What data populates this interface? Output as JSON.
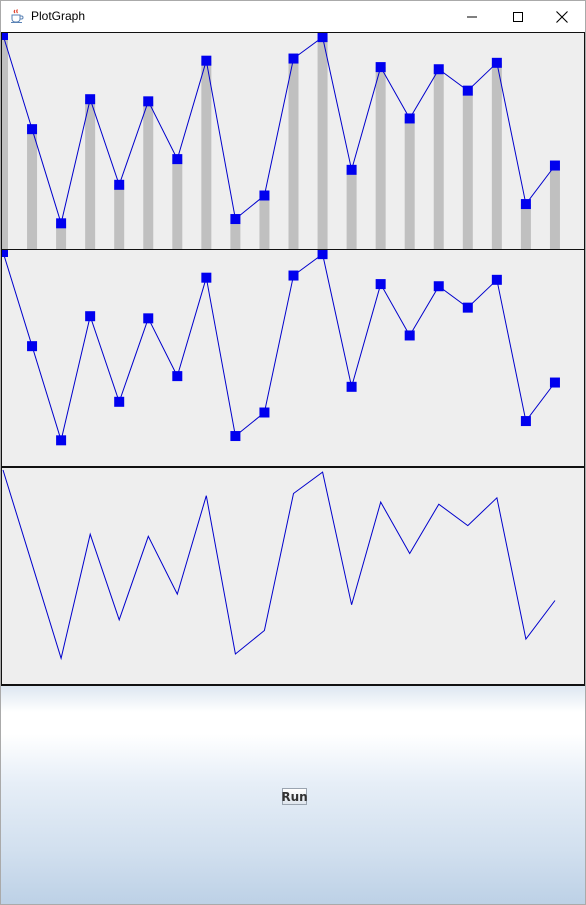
{
  "window": {
    "title": "PlotGraph",
    "app_icon": "java-coffee-cup-icon",
    "controls": [
      "minimize-icon",
      "maximize-icon",
      "close-icon"
    ]
  },
  "run_button": {
    "label": "Run"
  },
  "colors": {
    "line": "#0000cc",
    "marker": "#0000ee",
    "bar": "#c0c0c0",
    "panel_bg": "#eeeeee"
  },
  "chart_data": [
    {
      "type": "bar",
      "overlay": "line-with-square-markers",
      "title": "",
      "xlabel": "",
      "ylabel": "",
      "x": [
        0,
        1,
        2,
        3,
        4,
        5,
        6,
        7,
        8,
        9,
        10,
        11,
        12,
        13,
        14,
        15,
        16,
        17,
        18,
        19
      ],
      "values": [
        100,
        56,
        12,
        70,
        30,
        69,
        42,
        88,
        14,
        25,
        89,
        99,
        37,
        85,
        61,
        84,
        74,
        87,
        21,
        39
      ],
      "ylim": [
        0,
        100
      ],
      "grid": false
    },
    {
      "type": "line",
      "markers": "square",
      "title": "",
      "xlabel": "",
      "ylabel": "",
      "x": [
        0,
        1,
        2,
        3,
        4,
        5,
        6,
        7,
        8,
        9,
        10,
        11,
        12,
        13,
        14,
        15,
        16,
        17,
        18,
        19
      ],
      "values": [
        100,
        56,
        12,
        70,
        30,
        69,
        42,
        88,
        14,
        25,
        89,
        99,
        37,
        85,
        61,
        84,
        74,
        87,
        21,
        39
      ],
      "ylim": [
        0,
        100
      ],
      "grid": false
    },
    {
      "type": "line",
      "markers": "none",
      "title": "",
      "xlabel": "",
      "ylabel": "",
      "x": [
        0,
        1,
        2,
        3,
        4,
        5,
        6,
        7,
        8,
        9,
        10,
        11,
        12,
        13,
        14,
        15,
        16,
        17,
        18,
        19
      ],
      "values": [
        100,
        56,
        12,
        70,
        30,
        69,
        42,
        88,
        14,
        25,
        89,
        99,
        37,
        85,
        61,
        84,
        74,
        87,
        21,
        39
      ],
      "ylim": [
        0,
        100
      ],
      "grid": false
    }
  ]
}
